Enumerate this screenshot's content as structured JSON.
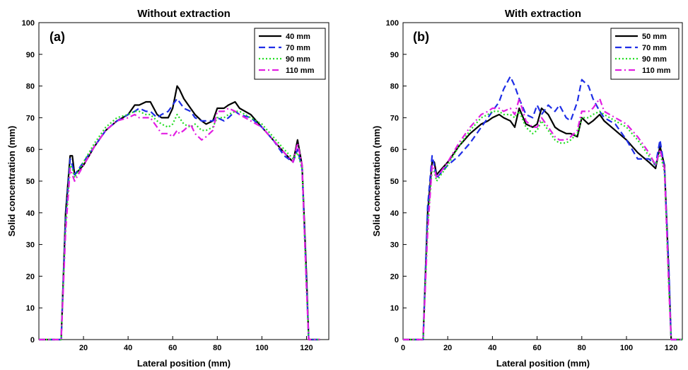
{
  "chart_data": [
    {
      "type": "line",
      "panel": "(a)",
      "title": "Without extraction",
      "xlabel": "Lateral position (mm)",
      "ylabel": "Solid concentration (mm)",
      "xlim": [
        0,
        130
      ],
      "ylim": [
        0,
        100
      ],
      "xticks": [
        20,
        40,
        60,
        80,
        100,
        120
      ],
      "yticks": [
        0,
        10,
        20,
        30,
        40,
        50,
        60,
        70,
        80,
        90,
        100
      ],
      "legend_position": "top-right",
      "grid": false,
      "series": [
        {
          "name": "40 mm",
          "color": "#000000",
          "dash": "solid",
          "x": [
            0,
            10,
            12,
            14,
            15,
            16,
            20,
            25,
            30,
            35,
            40,
            43,
            45,
            48,
            50,
            53,
            55,
            58,
            60,
            62,
            63,
            65,
            68,
            70,
            73,
            75,
            78,
            80,
            83,
            85,
            88,
            90,
            95,
            100,
            105,
            110,
            114,
            116,
            118,
            120,
            121,
            126
          ],
          "y": [
            0,
            0,
            40,
            58,
            58,
            52,
            55,
            61,
            66,
            69,
            71,
            74,
            74,
            75,
            75,
            71,
            70,
            70,
            73,
            80,
            79,
            76,
            73,
            71,
            69,
            68,
            69,
            73,
            73,
            74,
            75,
            73,
            71,
            67,
            63,
            59,
            56,
            63,
            55,
            20,
            0,
            0
          ]
        },
        {
          "name": "70 mm",
          "color": "#1f2ee6",
          "dash": "dashed",
          "x": [
            0,
            10,
            12,
            14,
            15,
            16,
            20,
            25,
            30,
            35,
            40,
            43,
            45,
            48,
            50,
            53,
            55,
            58,
            60,
            62,
            63,
            65,
            68,
            70,
            73,
            75,
            78,
            80,
            83,
            85,
            88,
            90,
            95,
            100,
            105,
            110,
            114,
            116,
            118,
            120,
            121,
            126
          ],
          "y": [
            0,
            0,
            38,
            57,
            55,
            52,
            56,
            61,
            66,
            69,
            71,
            72,
            73,
            72,
            72,
            70,
            71,
            72,
            74,
            76,
            75,
            73,
            72,
            70,
            69,
            69,
            69,
            70,
            69,
            70,
            72,
            71,
            70,
            67,
            63,
            58,
            56,
            60,
            54,
            18,
            0,
            0
          ]
        },
        {
          "name": "90 mm",
          "color": "#22dd22",
          "dash": "dotted",
          "x": [
            0,
            10,
            12,
            14,
            15,
            16,
            20,
            25,
            30,
            35,
            40,
            43,
            45,
            48,
            50,
            53,
            55,
            58,
            60,
            62,
            63,
            65,
            68,
            70,
            73,
            75,
            78,
            80,
            83,
            85,
            88,
            90,
            95,
            100,
            105,
            110,
            114,
            116,
            118,
            120,
            121,
            126
          ],
          "y": [
            0,
            0,
            36,
            55,
            54,
            51,
            56,
            62,
            67,
            70,
            71,
            72,
            72,
            71,
            71,
            69,
            68,
            67,
            68,
            71,
            70,
            68,
            67,
            68,
            66,
            66,
            67,
            70,
            70,
            71,
            72,
            72,
            70,
            68,
            64,
            60,
            57,
            59,
            54,
            16,
            0,
            0
          ]
        },
        {
          "name": "110 mm",
          "color": "#e21ee2",
          "dash": "dashdot",
          "x": [
            0,
            10,
            12,
            14,
            15,
            16,
            20,
            25,
            30,
            35,
            40,
            43,
            45,
            48,
            50,
            53,
            55,
            58,
            60,
            62,
            63,
            65,
            68,
            70,
            73,
            75,
            78,
            80,
            83,
            85,
            88,
            90,
            95,
            100,
            105,
            110,
            114,
            116,
            118,
            120,
            121,
            126
          ],
          "y": [
            0,
            0,
            34,
            54,
            52,
            50,
            55,
            61,
            66,
            69,
            70,
            71,
            70,
            70,
            70,
            67,
            65,
            65,
            64,
            66,
            65,
            66,
            68,
            65,
            63,
            64,
            66,
            72,
            72,
            73,
            72,
            71,
            69,
            67,
            63,
            59,
            56,
            62,
            55,
            16,
            0,
            0
          ]
        }
      ]
    },
    {
      "type": "line",
      "panel": "(b)",
      "title": "With extraction",
      "xlabel": "Lateral position (mm)",
      "ylabel": "Solid concentration (mm)",
      "xlim": [
        0,
        125
      ],
      "ylim": [
        0,
        100
      ],
      "xticks": [
        0,
        20,
        40,
        60,
        80,
        100,
        120
      ],
      "yticks": [
        0,
        10,
        20,
        30,
        40,
        50,
        60,
        70,
        80,
        90,
        100
      ],
      "legend_position": "top-right",
      "grid": false,
      "series": [
        {
          "name": "50 mm",
          "color": "#000000",
          "dash": "solid",
          "x": [
            0,
            9,
            11,
            13,
            14,
            15,
            20,
            25,
            30,
            35,
            38,
            40,
            43,
            45,
            48,
            50,
            52,
            55,
            58,
            60,
            62,
            65,
            68,
            70,
            73,
            75,
            78,
            80,
            83,
            85,
            88,
            90,
            95,
            100,
            105,
            110,
            113,
            115,
            117,
            119,
            120,
            125
          ],
          "y": [
            0,
            0,
            40,
            56,
            56,
            52,
            56,
            61,
            65,
            68,
            69,
            70,
            71,
            70,
            69,
            67,
            73,
            68,
            67,
            68,
            73,
            71,
            67,
            66,
            65,
            65,
            64,
            70,
            68,
            69,
            71,
            69,
            66,
            63,
            59,
            56,
            54,
            61,
            55,
            20,
            0,
            0
          ]
        },
        {
          "name": "70 mm",
          "color": "#1f2ee6",
          "dash": "dashed",
          "x": [
            0,
            9,
            11,
            13,
            14,
            15,
            20,
            25,
            30,
            35,
            38,
            40,
            43,
            45,
            48,
            50,
            52,
            55,
            58,
            60,
            62,
            65,
            68,
            70,
            73,
            75,
            78,
            80,
            83,
            85,
            88,
            90,
            95,
            100,
            105,
            110,
            113,
            115,
            117,
            119,
            120,
            125
          ],
          "y": [
            0,
            0,
            42,
            58,
            55,
            51,
            55,
            58,
            62,
            67,
            70,
            72,
            75,
            79,
            83,
            80,
            76,
            71,
            70,
            74,
            71,
            74,
            72,
            74,
            70,
            69,
            75,
            82,
            80,
            76,
            72,
            70,
            68,
            63,
            57,
            57,
            55,
            63,
            54,
            22,
            0,
            0
          ]
        },
        {
          "name": "90 mm",
          "color": "#22dd22",
          "dash": "dotted",
          "x": [
            0,
            9,
            11,
            13,
            14,
            15,
            20,
            25,
            30,
            35,
            38,
            40,
            43,
            45,
            48,
            50,
            52,
            55,
            58,
            60,
            62,
            65,
            68,
            70,
            73,
            75,
            78,
            80,
            83,
            85,
            88,
            90,
            95,
            100,
            105,
            110,
            113,
            115,
            117,
            119,
            120,
            125
          ],
          "y": [
            0,
            0,
            36,
            54,
            53,
            50,
            55,
            61,
            66,
            70,
            71,
            72,
            72,
            71,
            71,
            70,
            72,
            67,
            65,
            66,
            69,
            66,
            63,
            62,
            62,
            63,
            65,
            70,
            70,
            71,
            72,
            71,
            69,
            67,
            63,
            58,
            55,
            59,
            53,
            16,
            0,
            0
          ]
        },
        {
          "name": "110 mm",
          "color": "#e21ee2",
          "dash": "dashdot",
          "x": [
            0,
            9,
            11,
            13,
            14,
            15,
            20,
            25,
            30,
            35,
            38,
            40,
            43,
            45,
            48,
            50,
            52,
            55,
            58,
            60,
            62,
            65,
            68,
            70,
            73,
            75,
            78,
            80,
            83,
            85,
            88,
            90,
            95,
            100,
            105,
            110,
            113,
            115,
            117,
            119,
            120,
            125
          ],
          "y": [
            0,
            0,
            34,
            55,
            54,
            51,
            56,
            62,
            67,
            71,
            72,
            73,
            73,
            72,
            73,
            71,
            76,
            69,
            67,
            67,
            70,
            67,
            64,
            63,
            63,
            64,
            66,
            72,
            72,
            73,
            76,
            72,
            70,
            68,
            64,
            59,
            55,
            60,
            54,
            16,
            0,
            0
          ]
        }
      ]
    }
  ]
}
